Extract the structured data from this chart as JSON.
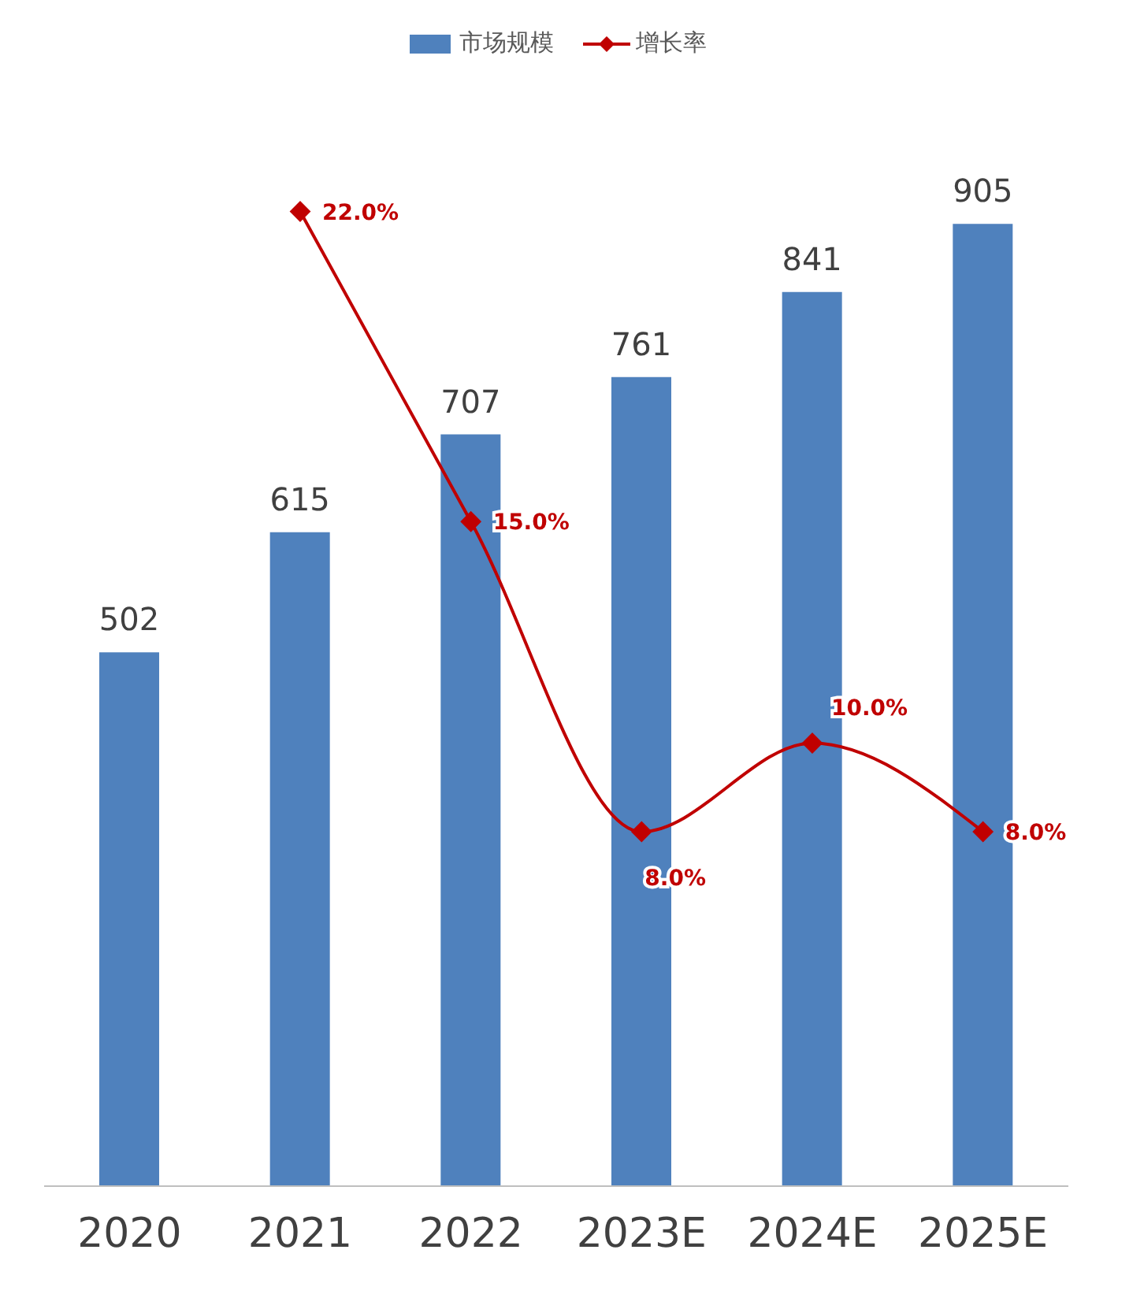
{
  "chart_data": {
    "type": "bar",
    "categories": [
      "2020",
      "2021",
      "2022",
      "2023E",
      "2024E",
      "2025E"
    ],
    "series": [
      {
        "name": "市场规模",
        "color": "#4f81bd",
        "values": [
          502,
          615,
          707,
          761,
          841,
          905
        ],
        "data_labels": true
      },
      {
        "name": "增长率",
        "type": "line",
        "axis": "y2",
        "color": "#c00000",
        "values": [
          null,
          22.0,
          15.0,
          8.0,
          10.0,
          8.0
        ],
        "value_labels": [
          null,
          "22.0%",
          "15.0%",
          "8.0%",
          "10.0%",
          "8.0%"
        ],
        "marker": "diamond"
      }
    ],
    "tick_labels": "x",
    "legend": "top"
  }
}
